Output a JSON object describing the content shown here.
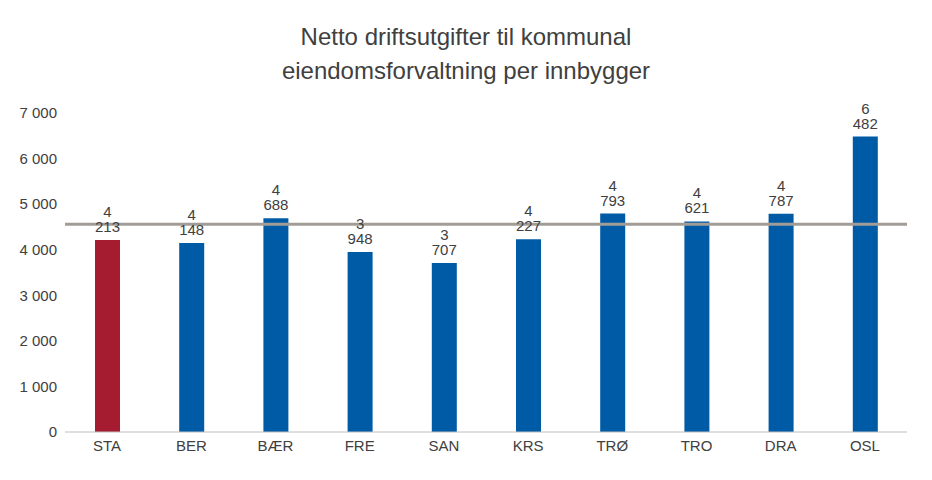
{
  "chart_data": {
    "type": "bar",
    "title": "Netto driftsutgifter til kommunal eiendomsforvaltning per innbygger",
    "categories": [
      "STA",
      "BER",
      "BÆR",
      "FRE",
      "SAN",
      "KRS",
      "TRØ",
      "TRO",
      "DRA",
      "OSL"
    ],
    "values": [
      4213,
      4148,
      4688,
      3948,
      3707,
      4227,
      4793,
      4621,
      4787,
      6482
    ],
    "value_labels": [
      "4 213",
      "4 148",
      "4 688",
      "3 948",
      "3 707",
      "4 227",
      "4 793",
      "4 621",
      "4 787",
      "6 482"
    ],
    "colors": [
      "#A51C30",
      "#005BA6",
      "#005BA6",
      "#005BA6",
      "#005BA6",
      "#005BA6",
      "#005BA6",
      "#005BA6",
      "#005BA6",
      "#005BA6"
    ],
    "reference_line": 4561,
    "ylim": [
      0,
      7000
    ],
    "yticks": [
      0,
      {
        "value": 1000,
        "label": "1 000"
      },
      {
        "value": 2000,
        "label": "2 000"
      },
      {
        "value": 3000,
        "label": "3 000"
      },
      {
        "value": 4000,
        "label": "4 000"
      },
      {
        "value": 5000,
        "label": "5 000"
      },
      {
        "value": 6000,
        "label": "6 000"
      },
      {
        "value": 7000,
        "label": "7 000"
      }
    ],
    "data_labels": true,
    "grid": false
  }
}
